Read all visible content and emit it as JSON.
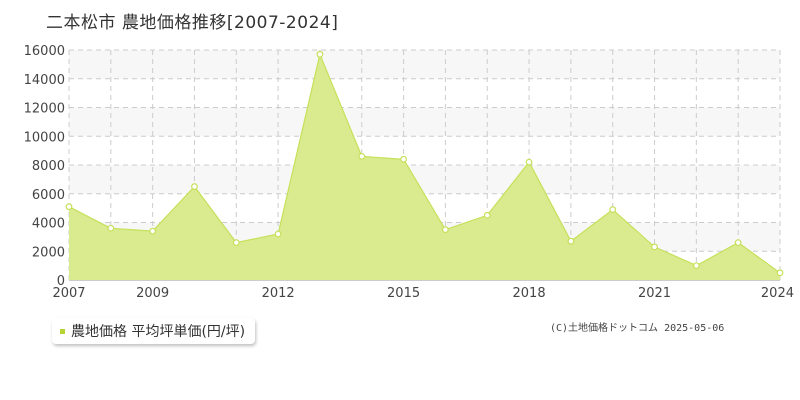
{
  "title": "二本松市 農地価格推移[2007-2024]",
  "legend": {
    "label": "農地価格 平均坪単価(円/坪)"
  },
  "copyright": "(C)土地価格ドットコム 2025-05-06",
  "colors": {
    "fill": "#d9eb8e",
    "line": "#c6e05a",
    "marker_fill": "#ffffff",
    "band": "#f7f7f7",
    "grid": "#cccccc",
    "legend_swatch": "#b5d334"
  },
  "chart_data": {
    "type": "area",
    "title": "二本松市 農地価格推移[2007-2024]",
    "x": [
      2007,
      2008,
      2009,
      2010,
      2011,
      2012,
      2013,
      2014,
      2015,
      2016,
      2017,
      2018,
      2019,
      2020,
      2021,
      2022,
      2023,
      2024
    ],
    "series": [
      {
        "name": "農地価格 平均坪単価(円/坪)",
        "values": [
          5100,
          3600,
          3400,
          6500,
          2600,
          3200,
          15700,
          8600,
          8400,
          3500,
          4500,
          8200,
          2700,
          4900,
          2300,
          1000,
          2600,
          500
        ]
      }
    ],
    "xticks": [
      "2007",
      "2009",
      "2012",
      "2015",
      "2018",
      "2021",
      "2024"
    ],
    "yticks": [
      "0",
      "2000",
      "4000",
      "6000",
      "8000",
      "10000",
      "12000",
      "14000",
      "16000"
    ],
    "ylim": [
      0,
      16000
    ],
    "xlim": [
      2007,
      2024
    ],
    "grid": true
  }
}
